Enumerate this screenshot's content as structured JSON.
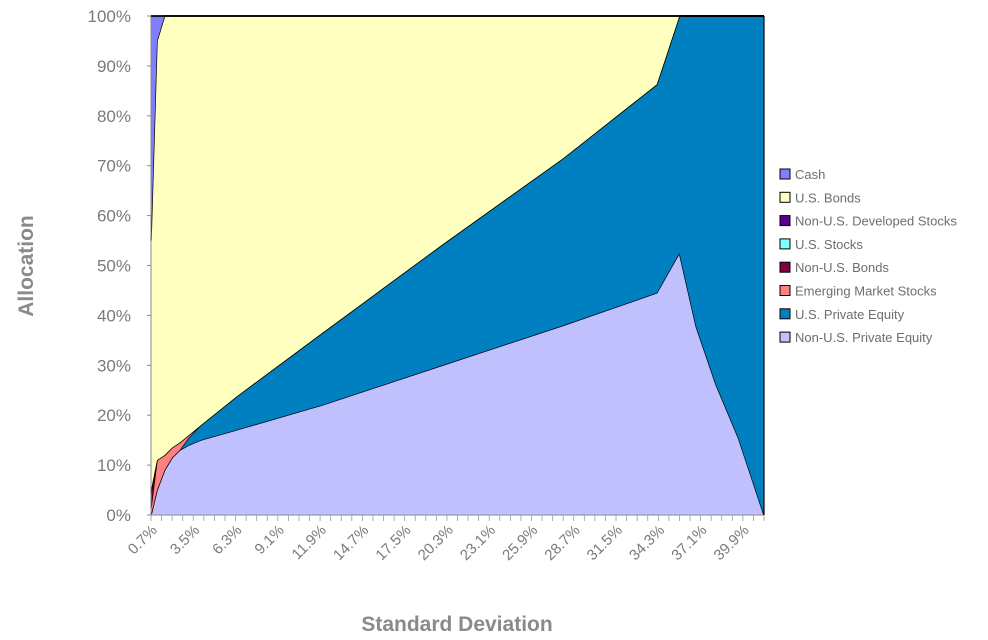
{
  "chart_data": {
    "type": "area",
    "stacked": true,
    "normalized": true,
    "xlabel": "Standard Deviation",
    "ylabel": "Allocation",
    "ylim": [
      0,
      100
    ],
    "yticks": [
      "0%",
      "10%",
      "20%",
      "30%",
      "40%",
      "50%",
      "60%",
      "70%",
      "80%",
      "90%",
      "100%"
    ],
    "x_range_percent": [
      0.7,
      41.3
    ],
    "x_tick_labels": [
      "0.7%",
      "3.5%",
      "6.3%",
      "9.1%",
      "11.9%",
      "14.7%",
      "17.5%",
      "20.3%",
      "23.1%",
      "25.9%",
      "28.7%",
      "31.5%",
      "34.3%",
      "37.1%",
      "39.9%"
    ],
    "grid": false,
    "legend_position": "right",
    "series": [
      {
        "name": "Non-U.S. Private Equity",
        "color": "#c0c0ff",
        "points": [
          [
            0.7,
            0
          ],
          [
            1.1,
            5
          ],
          [
            1.6,
            9
          ],
          [
            2.1,
            11.5
          ],
          [
            2.6,
            13
          ],
          [
            3.2,
            14
          ],
          [
            4.0,
            15
          ],
          [
            6.3,
            17
          ],
          [
            12,
            22
          ],
          [
            20,
            30
          ],
          [
            28,
            38
          ],
          [
            34.2,
            44.5
          ],
          [
            35.7,
            52.5
          ],
          [
            36.8,
            37.8
          ],
          [
            38.1,
            26.3
          ],
          [
            39.6,
            15.5
          ],
          [
            41.3,
            0
          ]
        ]
      },
      {
        "name": "U.S. Private Equity",
        "color": "#0080c0",
        "points": [
          [
            0.7,
            0
          ],
          [
            1.1,
            0
          ],
          [
            1.6,
            0
          ],
          [
            2.1,
            0
          ],
          [
            2.6,
            0
          ],
          [
            3.2,
            1.5
          ],
          [
            4.0,
            3
          ],
          [
            6.3,
            6.6
          ],
          [
            12,
            14.4
          ],
          [
            20,
            24.2
          ],
          [
            28,
            33.5
          ],
          [
            34.2,
            41.8
          ],
          [
            35.7,
            47.5
          ],
          [
            36.8,
            62.2
          ],
          [
            38.1,
            73.7
          ],
          [
            39.6,
            84.5
          ],
          [
            41.3,
            100
          ]
        ]
      },
      {
        "name": "Emerging Market Stocks",
        "color": "#ff8080",
        "points": [
          [
            0.7,
            1.5
          ],
          [
            1.1,
            6
          ],
          [
            1.6,
            3
          ],
          [
            2.1,
            2
          ],
          [
            2.6,
            1.5
          ],
          [
            3.2,
            0.5
          ],
          [
            4.0,
            0
          ],
          [
            6.3,
            0
          ],
          [
            12,
            0
          ],
          [
            20,
            0
          ],
          [
            28,
            0
          ],
          [
            34.2,
            0
          ],
          [
            35.7,
            0
          ],
          [
            36.8,
            0
          ],
          [
            38.1,
            0
          ],
          [
            39.6,
            0
          ],
          [
            41.3,
            0
          ]
        ]
      },
      {
        "name": "Non-U.S. Bonds",
        "color": "#800040",
        "points": [
          [
            0.7,
            3
          ],
          [
            1.1,
            0
          ],
          [
            1.6,
            0
          ],
          [
            2.1,
            0
          ],
          [
            2.6,
            0
          ],
          [
            3.2,
            0
          ],
          [
            4.0,
            0
          ],
          [
            6.3,
            0
          ],
          [
            12,
            0
          ],
          [
            20,
            0
          ],
          [
            28,
            0
          ],
          [
            34.2,
            0
          ],
          [
            35.7,
            0
          ],
          [
            36.8,
            0
          ],
          [
            38.1,
            0
          ],
          [
            39.6,
            0
          ],
          [
            41.3,
            0
          ]
        ]
      },
      {
        "name": "U.S. Stocks",
        "color": "#80ffff",
        "points": [
          [
            0.7,
            0
          ],
          [
            1.1,
            0
          ],
          [
            1.6,
            0
          ],
          [
            2.1,
            0
          ],
          [
            2.6,
            0
          ],
          [
            3.2,
            0
          ],
          [
            4.0,
            0
          ],
          [
            6.3,
            0
          ],
          [
            12,
            0
          ],
          [
            20,
            0
          ],
          [
            28,
            0
          ],
          [
            34.2,
            0
          ],
          [
            35.7,
            0
          ],
          [
            36.8,
            0
          ],
          [
            38.1,
            0
          ],
          [
            39.6,
            0
          ],
          [
            41.3,
            0
          ]
        ]
      },
      {
        "name": "Non-U.S. Developed Stocks",
        "color": "#5a0090",
        "points": [
          [
            0.7,
            0.5
          ],
          [
            1.1,
            0
          ],
          [
            1.6,
            0
          ],
          [
            2.1,
            0
          ],
          [
            2.6,
            0
          ],
          [
            3.2,
            0
          ],
          [
            4.0,
            0
          ],
          [
            6.3,
            0
          ],
          [
            12,
            0
          ],
          [
            20,
            0
          ],
          [
            28,
            0
          ],
          [
            34.2,
            0
          ],
          [
            35.7,
            0
          ],
          [
            36.8,
            0
          ],
          [
            38.1,
            0
          ],
          [
            39.6,
            0
          ],
          [
            41.3,
            0
          ]
        ]
      },
      {
        "name": "U.S. Bonds",
        "color": "#ffffc0",
        "points": [
          [
            0.7,
            50
          ],
          [
            1.1,
            84
          ],
          [
            1.6,
            88
          ],
          [
            2.1,
            86.5
          ],
          [
            2.6,
            85.5
          ],
          [
            3.2,
            84
          ],
          [
            4.0,
            82
          ],
          [
            6.3,
            76.4
          ],
          [
            12,
            63.6
          ],
          [
            20,
            45.8
          ],
          [
            28,
            28.5
          ],
          [
            34.2,
            13.7
          ],
          [
            35.7,
            0
          ],
          [
            36.8,
            0
          ],
          [
            38.1,
            0
          ],
          [
            39.6,
            0
          ],
          [
            41.3,
            0
          ]
        ]
      },
      {
        "name": "Cash",
        "color": "#8080ff",
        "points": [
          [
            0.7,
            45
          ],
          [
            1.1,
            5
          ],
          [
            1.6,
            0
          ],
          [
            2.1,
            0
          ],
          [
            2.6,
            0
          ],
          [
            3.2,
            0
          ],
          [
            4.0,
            0
          ],
          [
            6.3,
            0
          ],
          [
            12,
            0
          ],
          [
            20,
            0
          ],
          [
            28,
            0
          ],
          [
            34.2,
            0
          ],
          [
            35.7,
            0
          ],
          [
            36.8,
            0
          ],
          [
            38.1,
            0
          ],
          [
            39.6,
            0
          ],
          [
            41.3,
            0
          ]
        ]
      }
    ],
    "legend": [
      "Cash",
      "U.S. Bonds",
      "Non-U.S. Developed Stocks",
      "U.S. Stocks",
      "Non-U.S. Bonds",
      "Emerging Market Stocks",
      "U.S. Private Equity",
      "Non-U.S. Private Equity"
    ]
  }
}
